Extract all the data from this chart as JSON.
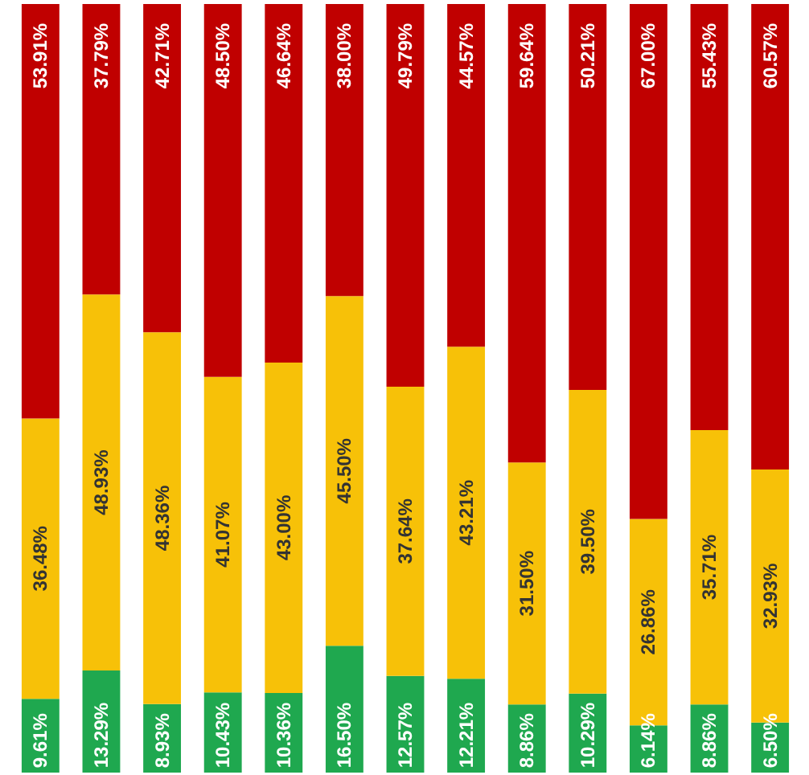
{
  "chart_data": {
    "type": "bar",
    "stacked": true,
    "categories": [
      null,
      null,
      null,
      null,
      null,
      null,
      null,
      null,
      null,
      null,
      null,
      null,
      null
    ],
    "ylim": [
      0,
      100
    ],
    "grid": false,
    "tick_labels": false,
    "series": [
      {
        "color": "#1fa84f",
        "values": [
          9.61,
          13.29,
          8.93,
          10.43,
          10.36,
          16.5,
          12.57,
          12.21,
          8.86,
          10.29,
          6.14,
          8.86,
          6.5
        ],
        "value_labels": [
          "9.61%",
          "13.29%",
          "8.93%",
          "10.43%",
          "10.36%",
          "16.50%",
          "12.57%",
          "12.21%",
          "8.86%",
          "10.29%",
          "6.14%",
          "8.86%",
          "6.50%"
        ]
      },
      {
        "color": "#f7c108",
        "values": [
          36.48,
          48.93,
          48.36,
          41.07,
          43.0,
          45.5,
          37.64,
          43.21,
          31.5,
          39.5,
          26.86,
          35.71,
          32.93
        ],
        "value_labels": [
          "36.48%",
          "48.93%",
          "48.36%",
          "41.07%",
          "43.00%",
          "45.50%",
          "37.64%",
          "43.21%",
          "31.50%",
          "39.50%",
          "26.86%",
          "35.71%",
          "32.93%"
        ]
      },
      {
        "color": "#c00000",
        "values": [
          53.91,
          37.79,
          42.71,
          48.5,
          46.64,
          38.0,
          49.79,
          44.57,
          59.64,
          50.21,
          67.0,
          55.43,
          60.57
        ],
        "value_labels": [
          "53.91%",
          "37.79%",
          "42.71%",
          "48.50%",
          "46.64%",
          "38.00%",
          "49.79%",
          "44.57%",
          "59.64%",
          "50.21%",
          "67.00%",
          "55.43%",
          "60.57%"
        ]
      }
    ]
  }
}
